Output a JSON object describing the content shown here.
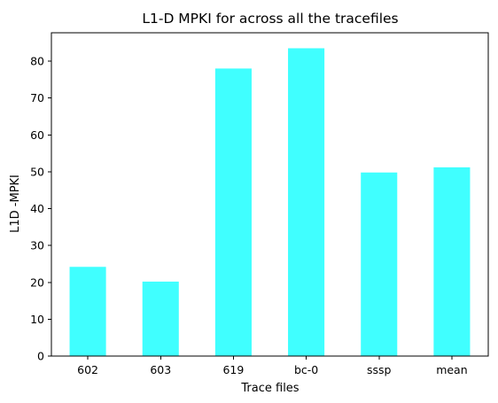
{
  "chart_data": {
    "type": "bar",
    "title": "L1-D MPKI for across all the tracefiles",
    "xlabel": "Trace files",
    "ylabel": "L1D -MPKI",
    "categories": [
      "602",
      "603",
      "619",
      "bc-0",
      "sssp",
      "mean"
    ],
    "values": [
      24.2,
      20.2,
      78.0,
      83.5,
      49.8,
      51.2
    ],
    "ylim": [
      0,
      87.7
    ],
    "yticks": [
      0,
      10,
      20,
      30,
      40,
      50,
      60,
      70,
      80
    ],
    "grid": false,
    "legend": "none",
    "bar_color": "#40ffff"
  }
}
